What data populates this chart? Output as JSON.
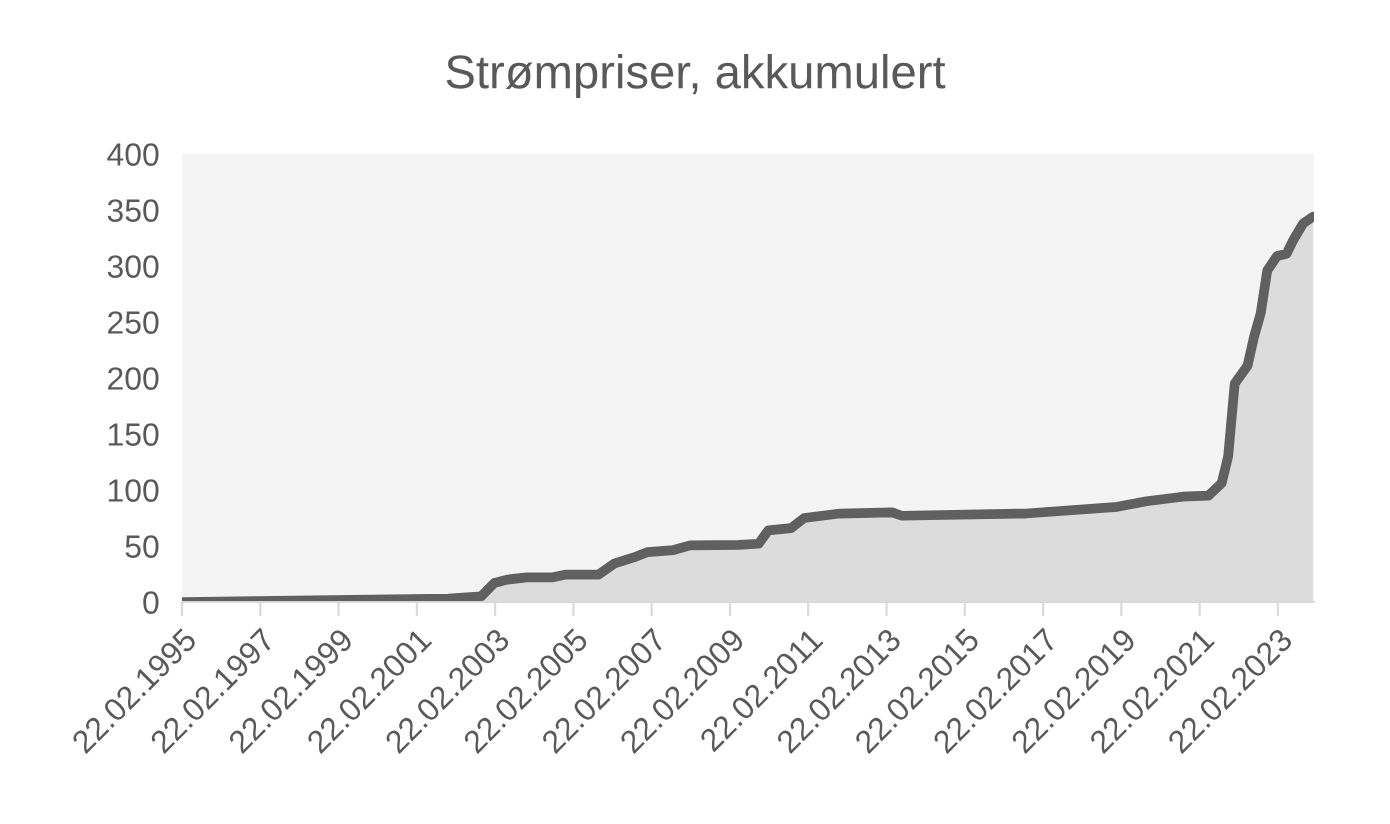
{
  "chart_data": {
    "type": "area",
    "title": "Strømpriser, akkumulert",
    "x": [
      "1995-02-22",
      "2001-12",
      "2002-10",
      "2003-02",
      "2003-06",
      "2003-12",
      "2004-08",
      "2004-12",
      "2005-10",
      "2006-03",
      "2006-09",
      "2007-01",
      "2007-09",
      "2008-02",
      "2009-05",
      "2009-11",
      "2010-02",
      "2010-09",
      "2011-01",
      "2011-12",
      "2013-04",
      "2013-07",
      "2016-09",
      "2019-01",
      "2019-10",
      "2020-09",
      "2021-05",
      "2021-09",
      "2021-11",
      "2022-01",
      "2022-05",
      "2022-07",
      "2022-09",
      "2022-11",
      "2023-02",
      "2023-05",
      "2023-07",
      "2023-10",
      "2024-01"
    ],
    "series": [
      {
        "color": "#606060",
        "values": [
          0,
          3,
          5,
          17,
          20,
          22,
          22,
          24.5,
          24.5,
          34.5,
          40,
          44.6,
          46.4,
          50.5,
          51,
          52,
          64,
          66,
          75,
          79,
          80,
          77,
          79,
          85,
          90,
          94,
          95,
          106,
          130,
          195,
          211,
          237,
          258,
          296,
          309,
          311,
          323,
          338,
          344
        ]
      }
    ],
    "xlim": [
      "1995-02-22",
      "2024-01-25"
    ],
    "xticks": [
      {
        "value": "1995-02-22",
        "label": "22.02.1995"
      },
      {
        "value": "1997-02-22",
        "label": "22.02.1997"
      },
      {
        "value": "1999-02-22",
        "label": "22.02.1999"
      },
      {
        "value": "2001-02-22",
        "label": "22.02.2001"
      },
      {
        "value": "2003-02-22",
        "label": "22.02.2003"
      },
      {
        "value": "2005-02-22",
        "label": "22.02.2005"
      },
      {
        "value": "2007-02-22",
        "label": "22.02.2007"
      },
      {
        "value": "2009-02-22",
        "label": "22.02.2009"
      },
      {
        "value": "2011-02-22",
        "label": "22.02.2011"
      },
      {
        "value": "2013-02-22",
        "label": "22.02.2013"
      },
      {
        "value": "2015-02-22",
        "label": "22.02.2015"
      },
      {
        "value": "2017-02-22",
        "label": "22.02.2017"
      },
      {
        "value": "2019-02-22",
        "label": "22.02.2019"
      },
      {
        "value": "2021-02-22",
        "label": "22.02.2021"
      },
      {
        "value": "2023-02-22",
        "label": "22.02.2023"
      }
    ],
    "ylim": [
      0,
      400
    ],
    "yticks": [
      0,
      50,
      100,
      150,
      200,
      250,
      300,
      350,
      400
    ],
    "grid": false
  }
}
